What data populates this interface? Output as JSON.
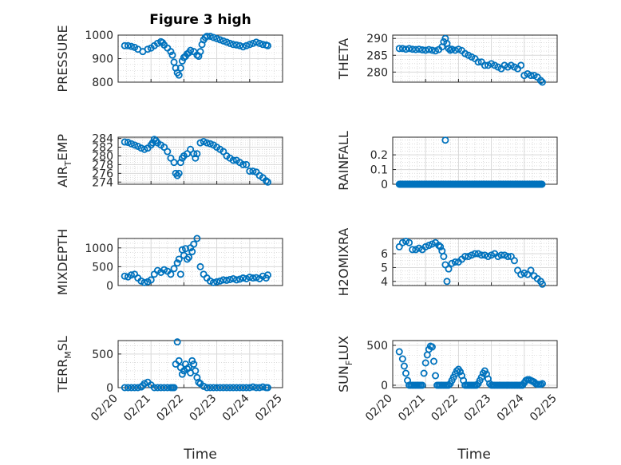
{
  "figure": {
    "title": "Figure 3 high",
    "xlabel": "Time",
    "marker_color": "#0072bd",
    "xtick_labels": [
      "02/20",
      "02/21",
      "02/22",
      "02/23",
      "02/24",
      "02/25"
    ]
  },
  "chart_data": [
    {
      "type": "scatter",
      "ylabel": "PRESSURE",
      "yticks": [
        800,
        900,
        1000
      ],
      "ytick_labels": [
        "800",
        "900",
        "1000"
      ],
      "ylim": [
        800,
        1000
      ],
      "grid": true,
      "x": [
        20.2,
        20.3,
        20.4,
        20.5,
        20.6,
        20.75,
        20.9,
        21.0,
        21.1,
        21.2,
        21.3,
        21.35,
        21.4,
        21.5,
        21.6,
        21.65,
        21.7,
        21.75,
        21.8,
        21.85,
        21.9,
        21.95,
        22.0,
        22.05,
        22.1,
        22.15,
        22.2,
        22.3,
        22.4,
        22.45,
        22.5,
        22.55,
        22.6,
        22.65,
        22.7,
        22.8,
        22.9,
        23.0,
        23.1,
        23.2,
        23.3,
        23.4,
        23.5,
        23.6,
        23.7,
        23.8,
        23.9,
        24.0,
        24.1,
        24.2,
        24.3,
        24.4,
        24.5,
        24.55
      ],
      "y": [
        955,
        955,
        952,
        948,
        940,
        930,
        940,
        945,
        955,
        965,
        972,
        968,
        958,
        945,
        930,
        915,
        885,
        860,
        840,
        830,
        860,
        890,
        905,
        910,
        920,
        925,
        935,
        930,
        915,
        910,
        930,
        960,
        980,
        990,
        995,
        995,
        990,
        985,
        980,
        975,
        970,
        965,
        960,
        958,
        955,
        950,
        955,
        960,
        965,
        970,
        965,
        960,
        958,
        955
      ]
    },
    {
      "type": "scatter",
      "ylabel": "THETA",
      "yticks": [
        280,
        285,
        290
      ],
      "ytick_labels": [
        "280",
        "285",
        "290"
      ],
      "ylim": [
        277,
        291
      ],
      "grid": true,
      "x": [
        20.2,
        20.3,
        20.4,
        20.5,
        20.6,
        20.7,
        20.8,
        20.9,
        21.0,
        21.1,
        21.2,
        21.3,
        21.4,
        21.5,
        21.55,
        21.6,
        21.65,
        21.7,
        21.75,
        21.8,
        21.9,
        22.0,
        22.1,
        22.2,
        22.3,
        22.4,
        22.5,
        22.6,
        22.7,
        22.8,
        22.9,
        23.0,
        23.1,
        23.2,
        23.3,
        23.4,
        23.5,
        23.6,
        23.7,
        23.8,
        23.9,
        24.0,
        24.1,
        24.2,
        24.3,
        24.4,
        24.5,
        24.55
      ],
      "y": [
        287,
        287,
        286.8,
        287,
        286.8,
        286.7,
        286.8,
        286.6,
        286.5,
        286.7,
        286.5,
        286.3,
        286.7,
        287.5,
        289,
        290,
        288.5,
        287,
        286.5,
        286.8,
        286.5,
        286.8,
        286.4,
        285.5,
        285,
        284.5,
        284,
        283,
        283,
        282,
        282,
        282.5,
        282,
        281.5,
        281,
        282,
        281.5,
        282,
        281.5,
        281,
        282,
        279,
        279.5,
        279,
        279,
        278.5,
        277.5,
        277
      ]
    },
    {
      "type": "scatter",
      "ylabel": "AIR_TEMP",
      "yticks": [
        274,
        276,
        278,
        280,
        282,
        284
      ],
      "ytick_labels": [
        "274",
        "276",
        "278",
        "280",
        "282",
        "284"
      ],
      "ylim": [
        273.5,
        284.3
      ],
      "grid": true,
      "x": [
        20.2,
        20.3,
        20.4,
        20.5,
        20.6,
        20.7,
        20.8,
        20.9,
        21.0,
        21.05,
        21.1,
        21.15,
        21.2,
        21.3,
        21.4,
        21.5,
        21.6,
        21.7,
        21.75,
        21.8,
        21.85,
        21.9,
        21.95,
        22.0,
        22.1,
        22.2,
        22.3,
        22.35,
        22.4,
        22.5,
        22.6,
        22.7,
        22.8,
        22.9,
        23.0,
        23.1,
        23.2,
        23.3,
        23.4,
        23.5,
        23.6,
        23.7,
        23.8,
        23.9,
        24.0,
        24.1,
        24.2,
        24.3,
        24.4,
        24.5,
        24.55
      ],
      "y": [
        283.2,
        283.1,
        282.8,
        282.5,
        282.2,
        281.8,
        281.5,
        281.8,
        282.5,
        283,
        283.8,
        283.5,
        283,
        282.5,
        282,
        281,
        279.5,
        278.5,
        276,
        275.5,
        276,
        278.5,
        279.5,
        280,
        280.5,
        281.5,
        280.5,
        279.5,
        280.5,
        283,
        283.3,
        283,
        282.8,
        282.5,
        282,
        281.5,
        281,
        280,
        279.5,
        279,
        279,
        278.5,
        278,
        278,
        276.5,
        276.5,
        276.3,
        275.5,
        275,
        274.3,
        274
      ]
    },
    {
      "type": "scatter",
      "ylabel": "RAINFALL",
      "yticks": [
        0,
        0.1,
        0.2
      ],
      "ytick_labels": [
        "0",
        "0.1",
        "0.2"
      ],
      "ylim": [
        0,
        0.32
      ],
      "grid": true,
      "spike": {
        "x": 21.6,
        "y": 0.3
      },
      "baseline": {
        "from": 20.2,
        "to": 24.55,
        "y": 0
      }
    },
    {
      "type": "scatter",
      "ylabel": "MIXDEPTH",
      "yticks": [
        0,
        500,
        1000
      ],
      "ytick_labels": [
        "0",
        "500",
        "1000"
      ],
      "ylim": [
        0,
        1250
      ],
      "grid": true,
      "x": [
        20.2,
        20.3,
        20.4,
        20.5,
        20.6,
        20.7,
        20.8,
        20.9,
        21.0,
        21.1,
        21.2,
        21.3,
        21.4,
        21.5,
        21.6,
        21.7,
        21.8,
        21.85,
        21.9,
        21.95,
        22.0,
        22.05,
        22.1,
        22.15,
        22.2,
        22.25,
        22.3,
        22.4,
        22.5,
        22.6,
        22.7,
        22.8,
        22.9,
        23.0,
        23.1,
        23.2,
        23.3,
        23.4,
        23.5,
        23.6,
        23.7,
        23.8,
        23.9,
        24.0,
        24.1,
        24.2,
        24.3,
        24.4,
        24.5,
        24.55
      ],
      "y": [
        250,
        230,
        280,
        300,
        200,
        120,
        80,
        100,
        150,
        300,
        400,
        350,
        420,
        380,
        300,
        450,
        600,
        700,
        300,
        950,
        800,
        980,
        700,
        750,
        1000,
        900,
        1100,
        1250,
        500,
        300,
        200,
        120,
        80,
        100,
        120,
        150,
        140,
        160,
        180,
        150,
        170,
        200,
        180,
        220,
        200,
        210,
        180,
        250,
        200,
        280
      ]
    },
    {
      "type": "scatter",
      "ylabel": "H2OMIXRA",
      "yticks": [
        4,
        5,
        6
      ],
      "ytick_labels": [
        "4",
        "5",
        "6"
      ],
      "ylim": [
        3.7,
        7.1
      ],
      "grid": true,
      "x": [
        20.2,
        20.3,
        20.4,
        20.5,
        20.6,
        20.7,
        20.8,
        20.9,
        21.0,
        21.1,
        21.2,
        21.3,
        21.4,
        21.45,
        21.5,
        21.55,
        21.6,
        21.65,
        21.7,
        21.8,
        21.9,
        22.0,
        22.1,
        22.2,
        22.3,
        22.4,
        22.5,
        22.6,
        22.7,
        22.8,
        22.9,
        23.0,
        23.1,
        23.2,
        23.3,
        23.4,
        23.5,
        23.6,
        23.7,
        23.8,
        23.9,
        24.0,
        24.1,
        24.2,
        24.3,
        24.4,
        24.5,
        24.55
      ],
      "y": [
        6.5,
        6.8,
        6.9,
        6.8,
        6.3,
        6.3,
        6.4,
        6.3,
        6.5,
        6.6,
        6.7,
        6.8,
        6.6,
        6.5,
        6.2,
        5.8,
        5.2,
        4.0,
        4.9,
        5.3,
        5.4,
        5.4,
        5.6,
        5.8,
        5.8,
        5.9,
        6.0,
        6.0,
        5.9,
        5.9,
        5.8,
        5.9,
        6.0,
        5.8,
        5.9,
        5.9,
        5.8,
        5.8,
        5.5,
        4.8,
        4.5,
        4.6,
        4.5,
        4.8,
        4.4,
        4.2,
        4.0,
        3.8
      ]
    },
    {
      "type": "scatter",
      "ylabel": "TERR_MSL",
      "yticks": [
        0,
        500
      ],
      "ytick_labels": [
        "0",
        "500"
      ],
      "ylim": [
        0,
        700
      ],
      "grid": true,
      "x": [
        20.2,
        20.3,
        20.4,
        20.5,
        20.6,
        20.7,
        20.75,
        20.8,
        20.9,
        21.0,
        21.1,
        21.2,
        21.3,
        21.4,
        21.5,
        21.6,
        21.65,
        21.7,
        21.75,
        21.8,
        21.85,
        21.9,
        21.95,
        22.0,
        22.05,
        22.1,
        22.15,
        22.2,
        22.25,
        22.3,
        22.35,
        22.4,
        22.45,
        22.5,
        22.6,
        22.7,
        22.8,
        22.9,
        23.0,
        23.1,
        23.2,
        23.3,
        23.4,
        23.5,
        23.6,
        23.7,
        23.8,
        23.9,
        24.0,
        24.1,
        24.2,
        24.3,
        24.4,
        24.5,
        24.55
      ],
      "y": [
        0,
        0,
        0,
        0,
        0,
        10,
        30,
        60,
        80,
        40,
        0,
        0,
        0,
        0,
        0,
        0,
        0,
        0,
        350,
        680,
        400,
        300,
        200,
        250,
        350,
        280,
        300,
        220,
        400,
        350,
        250,
        150,
        80,
        60,
        20,
        0,
        0,
        0,
        0,
        0,
        0,
        0,
        0,
        0,
        0,
        0,
        0,
        0,
        0,
        10,
        0,
        0,
        10,
        0,
        0
      ]
    },
    {
      "type": "scatter",
      "ylabel": "SUN_FLUX",
      "yticks": [
        0,
        500
      ],
      "ytick_labels": [
        "0",
        "500"
      ],
      "ylim": [
        -30,
        560
      ],
      "grid": true,
      "x": [
        20.2,
        20.3,
        20.35,
        20.4,
        20.45,
        20.5,
        20.55,
        20.6,
        20.65,
        20.7,
        20.75,
        20.8,
        20.85,
        20.9,
        20.95,
        21.0,
        21.05,
        21.1,
        21.15,
        21.2,
        21.25,
        21.3,
        21.35,
        21.4,
        21.45,
        21.5,
        21.55,
        21.6,
        21.65,
        21.7,
        21.75,
        21.8,
        21.85,
        21.9,
        21.95,
        22.0,
        22.05,
        22.1,
        22.15,
        22.2,
        22.25,
        22.3,
        22.35,
        22.4,
        22.45,
        22.5,
        22.55,
        22.6,
        22.65,
        22.7,
        22.75,
        22.8,
        22.85,
        22.9,
        22.95,
        23.0,
        23.05,
        23.1,
        23.15,
        23.2,
        23.25,
        23.3,
        23.35,
        23.4,
        23.45,
        23.5,
        23.55,
        23.6,
        23.65,
        23.7,
        23.75,
        23.8,
        23.85,
        23.9,
        23.95,
        24.0,
        24.05,
        24.1,
        24.15,
        24.2,
        24.25,
        24.3,
        24.35,
        24.4,
        24.45,
        24.5,
        24.55
      ],
      "y": [
        420,
        330,
        240,
        150,
        60,
        0,
        0,
        0,
        0,
        0,
        0,
        0,
        0,
        0,
        150,
        280,
        380,
        450,
        490,
        480,
        300,
        120,
        0,
        0,
        0,
        0,
        0,
        0,
        0,
        0,
        20,
        60,
        100,
        140,
        180,
        200,
        170,
        120,
        60,
        0,
        0,
        0,
        0,
        0,
        0,
        0,
        0,
        20,
        60,
        100,
        150,
        180,
        140,
        80,
        20,
        0,
        0,
        0,
        0,
        0,
        0,
        0,
        0,
        0,
        0,
        0,
        0,
        0,
        0,
        0,
        0,
        0,
        0,
        0,
        0,
        30,
        60,
        70,
        70,
        60,
        50,
        40,
        20,
        10,
        10,
        10,
        20
      ]
    }
  ]
}
